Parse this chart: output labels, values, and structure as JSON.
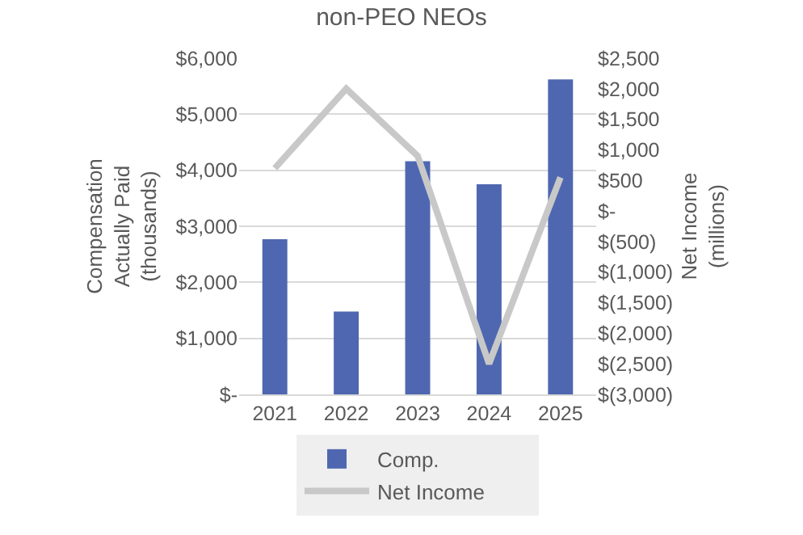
{
  "chart_data": {
    "type": "bar",
    "title": "non-PEO NEOs",
    "ylabel": "Compensation\nActually Paid\n(thousands)",
    "y2label": "Net Income\n(millions)",
    "categories": [
      "2021",
      "2022",
      "2023",
      "2024",
      "2025"
    ],
    "series": [
      {
        "name": "Comp.",
        "color": "#4f67b0",
        "values": [
          2770,
          1480,
          4160,
          3750,
          5620
        ]
      },
      {
        "name": "Net Income",
        "type": "line",
        "axis": "y2",
        "color": "#c8c8c8",
        "marker": "none",
        "line_style": "solid",
        "values": [
          700,
          2000,
          900,
          -2500,
          550
        ]
      }
    ],
    "ylim": [
      0,
      6000
    ],
    "yticks": [
      {
        "value": 0,
        "label": "$-"
      },
      {
        "value": 1000,
        "label": "$1,000"
      },
      {
        "value": 2000,
        "label": "$2,000"
      },
      {
        "value": 3000,
        "label": "$3,000"
      },
      {
        "value": 4000,
        "label": "$4,000"
      },
      {
        "value": 5000,
        "label": "$5,000"
      },
      {
        "value": 6000,
        "label": "$6,000"
      }
    ],
    "y2lim": [
      -3000,
      2500
    ],
    "y2ticks": [
      {
        "value": -3000,
        "label": "$(3,000)"
      },
      {
        "value": -2500,
        "label": "$(2,500)"
      },
      {
        "value": -2000,
        "label": "$(2,000)"
      },
      {
        "value": -1500,
        "label": "$(1,500)"
      },
      {
        "value": -1000,
        "label": "$(1,000)"
      },
      {
        "value": -500,
        "label": "$(500)"
      },
      {
        "value": 0,
        "label": "$-"
      },
      {
        "value": 500,
        "label": "$500"
      },
      {
        "value": 1000,
        "label": "$1,000"
      },
      {
        "value": 1500,
        "label": "$1,500"
      },
      {
        "value": 2000,
        "label": "$2,000"
      },
      {
        "value": 2500,
        "label": "$2,500"
      }
    ],
    "grid": "y",
    "legend": "bottom"
  }
}
